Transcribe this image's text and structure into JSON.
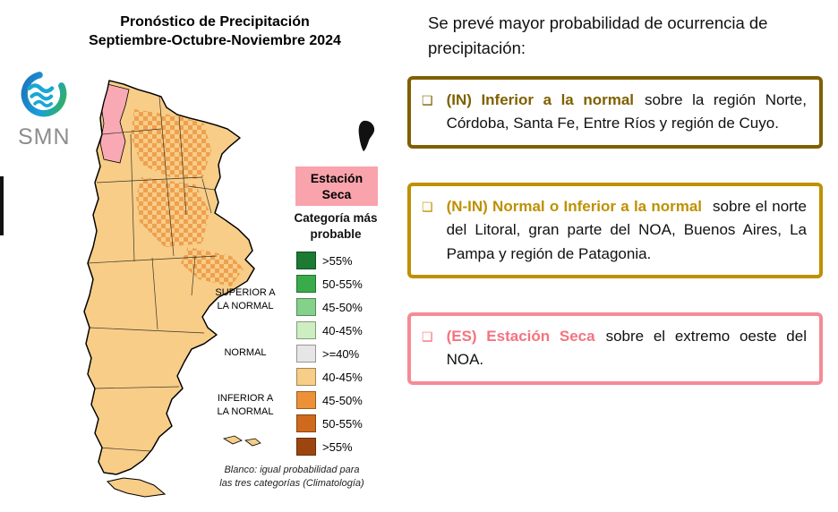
{
  "page": {
    "background": "#ffffff"
  },
  "map_panel": {
    "title_line1": "Pronóstico de Precipitación",
    "title_line2": "Septiembre-Octubre-Noviembre 2024",
    "logo_text": "SMN",
    "estacion_badge": "Estación\nSeca",
    "map_colors": {
      "base": "#f7cd87",
      "darker_patch": "#efa04f",
      "dry_season": "#f8a9b3",
      "badge_pink": "#f9a3ad"
    },
    "legend": {
      "title": "Categoría más\nprobable",
      "groups": [
        {
          "label": "SUPERIOR A\nLA NORMAL"
        },
        {
          "label": "NORMAL"
        },
        {
          "label": "INFERIOR A\nLA NORMAL"
        }
      ],
      "items": [
        {
          "label": ">55%",
          "color": "#1c7a33"
        },
        {
          "label": "50-55%",
          "color": "#3aab4a"
        },
        {
          "label": "45-50%",
          "color": "#84d189"
        },
        {
          "label": "40-45%",
          "color": "#cdeec0"
        },
        {
          "label": ">=40%",
          "color": "#e6e6e6"
        },
        {
          "label": "40-45%",
          "color": "#f7cd87"
        },
        {
          "label": "45-50%",
          "color": "#ec9138"
        },
        {
          "label": "50-55%",
          "color": "#cf6a1c"
        },
        {
          "label": ">55%",
          "color": "#9d450f"
        }
      ],
      "footnote": "Blanco: igual probabilidad para\nlas tres categorías (Climatología)"
    }
  },
  "right_panel": {
    "intro": "Se prevé mayor probabilidad de ocurrencia de precipitación:",
    "boxes": [
      {
        "bullet": "❑",
        "highlight": "(IN) Inferior a la normal",
        "text": "sobre la región Norte, Córdoba, Santa Fe, Entre Ríos y región de Cuyo.",
        "highlight_color": "#7f6000",
        "border_color": "#7f6000"
      },
      {
        "bullet": "❑",
        "highlight": "(N-IN) Normal o Inferior a la normal",
        "text": "sobre el norte del Litoral, gran parte del NOA, Buenos Aires, La Pampa y región de Patagonia.",
        "highlight_color": "#bf9000",
        "border_color": "#bf9000"
      },
      {
        "bullet": "❑",
        "highlight": "(ES) Estación Seca",
        "text": "sobre el extremo oeste del NOA.",
        "highlight_color": "#f4737f",
        "border_color": "#f58b95"
      }
    ]
  }
}
